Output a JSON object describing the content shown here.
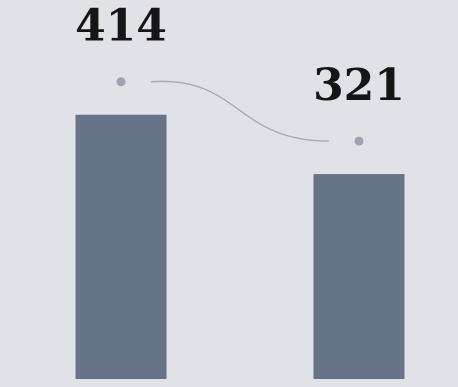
{
  "chart_data": {
    "type": "bar",
    "categories": [
      "",
      ""
    ],
    "values": [
      414,
      321
    ],
    "ylim": [
      0,
      470
    ],
    "grid": false,
    "colors": {
      "background": "#e1e2e7",
      "bar": "#667389",
      "marker": "#9ea3b1",
      "connector": "#a6abb8",
      "label": "#151515"
    }
  }
}
